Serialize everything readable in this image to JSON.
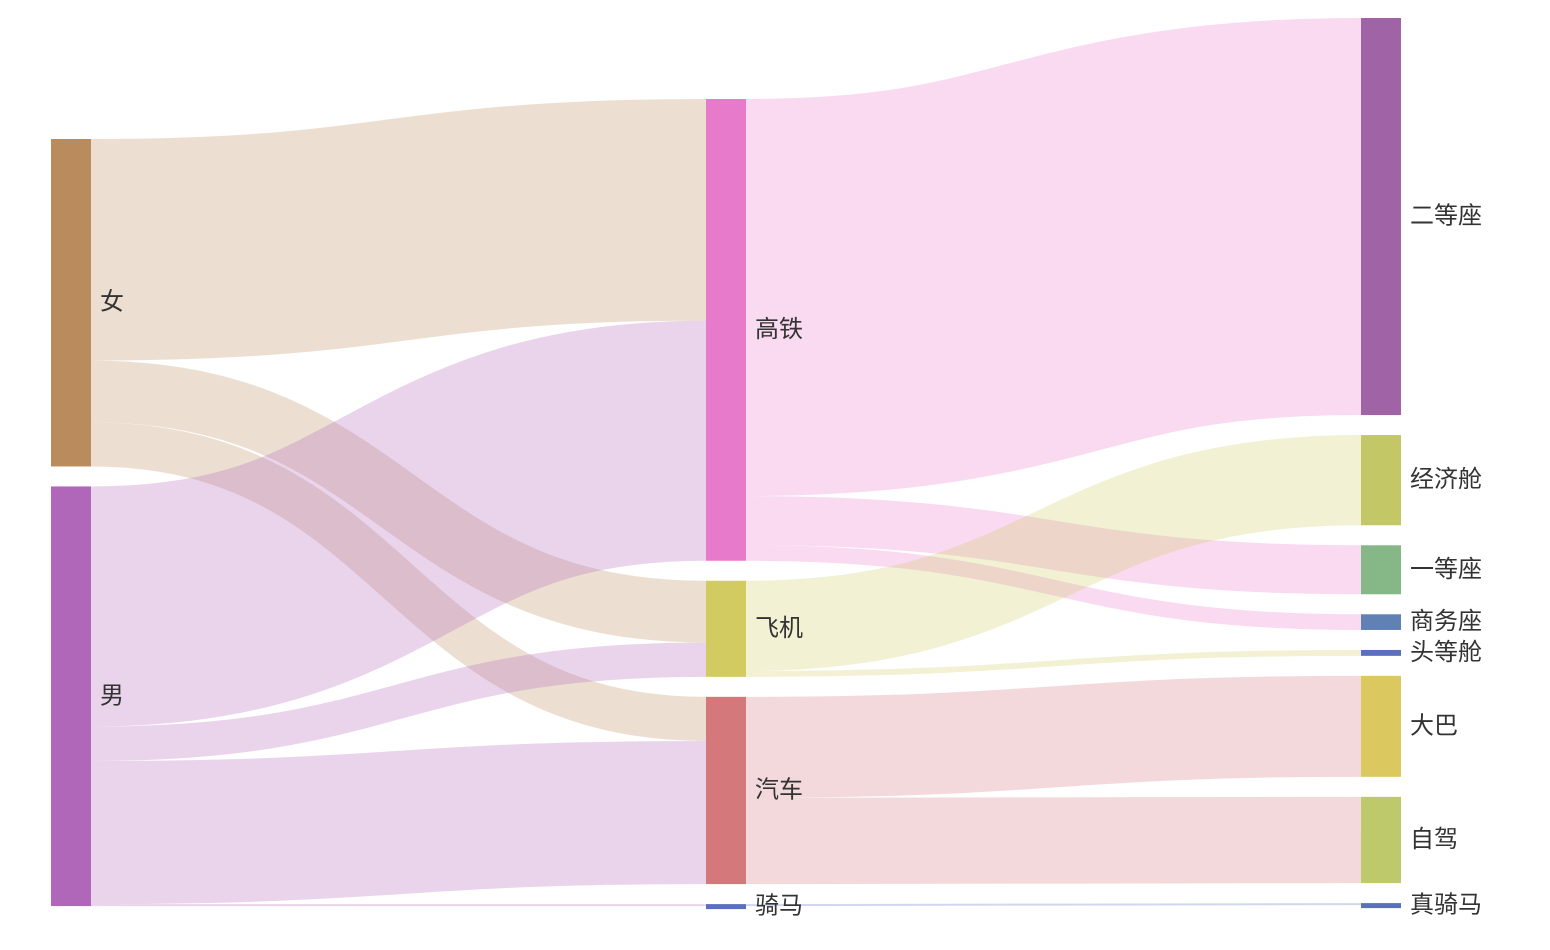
{
  "chart_data": {
    "type": "sankey",
    "title": "",
    "columns": [
      [
        "女",
        "男"
      ],
      [
        "高铁",
        "飞机",
        "汽车",
        "骑马"
      ],
      [
        "二等座",
        "经济舱",
        "一等座",
        "商务座",
        "头等舱",
        "大巴",
        "自驾",
        "真骑马"
      ]
    ],
    "nodes": [
      {
        "name": "女",
        "color": "#b98b5d"
      },
      {
        "name": "男",
        "color": "#b066b9"
      },
      {
        "name": "高铁",
        "color": "#e87acb"
      },
      {
        "name": "飞机",
        "color": "#d2cb62"
      },
      {
        "name": "汽车",
        "color": "#d4787c"
      },
      {
        "name": "骑马",
        "color": "#5a6fbd"
      },
      {
        "name": "二等座",
        "color": "#a064a6"
      },
      {
        "name": "经济舱",
        "color": "#c4c766"
      },
      {
        "name": "一等座",
        "color": "#85b886"
      },
      {
        "name": "商务座",
        "color": "#6181b4"
      },
      {
        "name": "头等舱",
        "color": "#5a6fbd"
      },
      {
        "name": "大巴",
        "color": "#dbc85f"
      },
      {
        "name": "自驾",
        "color": "#bec96c"
      },
      {
        "name": "真骑马",
        "color": "#5a6fbd"
      }
    ],
    "links": [
      {
        "source": "女",
        "target": "高铁",
        "value": 226
      },
      {
        "source": "女",
        "target": "飞机",
        "value": 63
      },
      {
        "source": "女",
        "target": "汽车",
        "value": 45
      },
      {
        "source": "男",
        "target": "高铁",
        "value": 245
      },
      {
        "source": "男",
        "target": "飞机",
        "value": 35
      },
      {
        "source": "男",
        "target": "汽车",
        "value": 146
      },
      {
        "source": "男",
        "target": "骑马",
        "value": 2
      },
      {
        "source": "高铁",
        "target": "二等座",
        "value": 405
      },
      {
        "source": "高铁",
        "target": "一等座",
        "value": 50
      },
      {
        "source": "高铁",
        "target": "商务座",
        "value": 16
      },
      {
        "source": "飞机",
        "target": "经济舱",
        "value": 92
      },
      {
        "source": "飞机",
        "target": "头等舱",
        "value": 6
      },
      {
        "source": "汽车",
        "target": "大巴",
        "value": 103
      },
      {
        "source": "汽车",
        "target": "自驾",
        "value": 88
      },
      {
        "source": "骑马",
        "target": "真骑马",
        "value": 2
      }
    ]
  }
}
